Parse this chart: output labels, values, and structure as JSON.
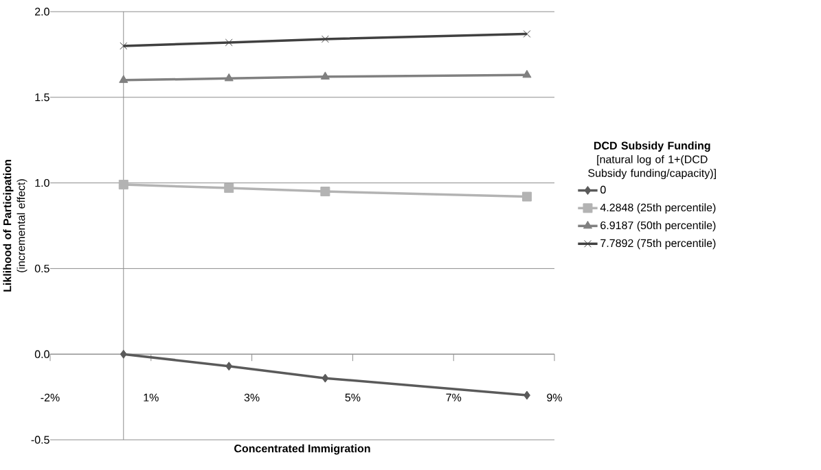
{
  "chart_data": {
    "type": "line",
    "xlabel": "Concentrated Immigration",
    "ylabel": "**Liklihood of Participation** (incremental effect)",
    "legend_title": "**DCD Subsidy Funding** [natural log of 1+(DCD Subsidy funding/capacity)]",
    "x": [
      0,
      2.3,
      4.4,
      8.8
    ],
    "series": [
      {
        "name": "0",
        "color": "#5a5a5a",
        "marker": "diamond",
        "values": [
          0.0,
          -0.07,
          -0.14,
          -0.24
        ]
      },
      {
        "name": "4.2848 (25th percentile)",
        "color": "#b3b3b3",
        "marker": "square",
        "values": [
          0.99,
          0.97,
          0.95,
          0.92
        ]
      },
      {
        "name": "6.9187 (50th percentile)",
        "color": "#808080",
        "marker": "triangle",
        "values": [
          1.6,
          1.61,
          1.62,
          1.63
        ]
      },
      {
        "name": "7.7892 (75th percentile)",
        "color": "#404040",
        "marker": "cross",
        "values": [
          1.8,
          1.82,
          1.84,
          1.87
        ]
      }
    ],
    "xlim": [
      -1.6,
      9.4
    ],
    "xticks": [
      {
        "value": -1.6,
        "label": "-2%"
      },
      {
        "value": 0.6,
        "label": "1%"
      },
      {
        "value": 2.8,
        "label": "3%"
      },
      {
        "value": 5.0,
        "label": "5%"
      },
      {
        "value": 7.2,
        "label": "7%"
      },
      {
        "value": 9.4,
        "label": "9%"
      }
    ],
    "ylim": [
      -0.5,
      2.0
    ],
    "yticks": [
      {
        "value": -0.5,
        "label": "-0.5"
      },
      {
        "value": 0.0,
        "label": "0.0"
      },
      {
        "value": 0.5,
        "label": "0.5"
      },
      {
        "value": 1.0,
        "label": "1.0"
      },
      {
        "value": 1.5,
        "label": "1.5"
      },
      {
        "value": 2.0,
        "label": "2.0"
      }
    ],
    "grid": "y",
    "legend": "right"
  }
}
